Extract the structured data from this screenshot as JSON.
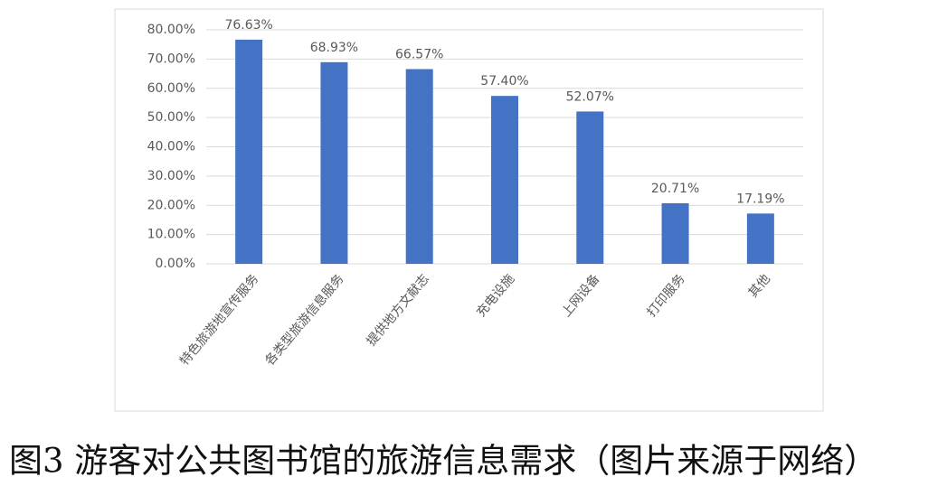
{
  "chart_data": {
    "type": "bar",
    "caption": "图3 游客对公共图书馆的旅游信息需求（图片来源于网络）",
    "categories": [
      "特色旅游地宣传服务",
      "各类型旅游信息服务",
      "提供地方文献志",
      "充电设施",
      "上网设备",
      "打印服务",
      "其他"
    ],
    "values": [
      76.63,
      68.93,
      66.57,
      57.4,
      52.07,
      20.71,
      17.19
    ],
    "value_labels": [
      "76.63%",
      "68.93%",
      "66.57%",
      "57.40%",
      "52.07%",
      "20.71%",
      "17.19%"
    ],
    "color": "#4472c4",
    "ylim": [
      0,
      80
    ],
    "yticks": [
      {
        "value": 0,
        "label": "0.00%"
      },
      {
        "value": 10,
        "label": "10.00%"
      },
      {
        "value": 20,
        "label": "20.00%"
      },
      {
        "value": 30,
        "label": "30.00%"
      },
      {
        "value": 40,
        "label": "40.00%"
      },
      {
        "value": 50,
        "label": "50.00%"
      },
      {
        "value": 60,
        "label": "60.00%"
      },
      {
        "value": 70,
        "label": "70.00%"
      },
      {
        "value": 80,
        "label": "80.00%"
      }
    ],
    "grid": true
  }
}
